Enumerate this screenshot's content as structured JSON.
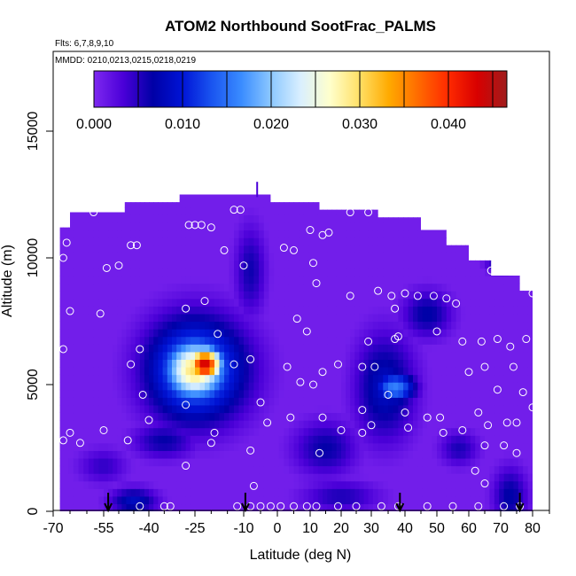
{
  "chart_data": {
    "type": "heatmap",
    "title": "ATOM2 Northbound SootFrac_PALMS",
    "subtitle_flights": "Flts: 6,7,8,9,10",
    "subtitle_dates": "MMDD: 0210,0213,0215,0218,0219",
    "xlabel": "Latitude (deg N)",
    "ylabel": "Altitude (m)",
    "xlim": [
      -70,
      85
    ],
    "ylim": [
      0,
      17500
    ],
    "x_ticks": [
      -70,
      -55,
      -40,
      -25,
      -10,
      0,
      10,
      20,
      30,
      40,
      50,
      60,
      70,
      80
    ],
    "x_tick_labels": [
      "-70",
      "-55",
      "-40",
      "-25",
      "-10",
      "0",
      "10",
      "20",
      "30",
      "40",
      "50",
      "60",
      "70",
      "80"
    ],
    "y_ticks": [
      0,
      5000,
      10000,
      15000
    ],
    "y_tick_labels": [
      "0",
      "5000",
      "10000",
      "15000"
    ],
    "colorbar": {
      "min": 0.0,
      "max": 0.0466,
      "tick_values": [
        0.0,
        0.01,
        0.02,
        0.03,
        0.04
      ],
      "tick_labels": [
        "0.000",
        "0.010",
        "0.020",
        "0.030",
        "0.040"
      ],
      "colors": [
        "#7e28f0",
        "#4a00d8",
        "#0000a6",
        "#0014d6",
        "#1a55f0",
        "#3a8cff",
        "#8cc8ff",
        "#d9efff",
        "#ffffcc",
        "#ffe066",
        "#ffaa00",
        "#ff6a00",
        "#ff2a00",
        "#d80000",
        "#a01c1c"
      ]
    },
    "grid": false,
    "legend": "none",
    "field_boundary": [
      [
        -68,
        0
      ],
      [
        -68,
        11200
      ],
      [
        -65,
        11200
      ],
      [
        -65,
        11800
      ],
      [
        -48,
        11800
      ],
      [
        -48,
        12200
      ],
      [
        -30,
        12200
      ],
      [
        -30,
        12500
      ],
      [
        -2,
        12500
      ],
      [
        -2,
        12200
      ],
      [
        13,
        12200
      ],
      [
        13,
        11900
      ],
      [
        32,
        11900
      ],
      [
        32,
        11600
      ],
      [
        45,
        11600
      ],
      [
        45,
        11100
      ],
      [
        53,
        11100
      ],
      [
        53,
        10500
      ],
      [
        60,
        10500
      ],
      [
        60,
        9900
      ],
      [
        67,
        9900
      ],
      [
        67,
        9300
      ],
      [
        76,
        9300
      ],
      [
        76,
        8700
      ],
      [
        80,
        8700
      ],
      [
        80,
        0
      ]
    ],
    "field_features": [
      {
        "lat": -22,
        "alt": 5800,
        "value": 0.044,
        "lat_halfwidth": 7,
        "alt_halfwidth": 900
      },
      {
        "lat": -25,
        "alt": 5600,
        "value": 0.03,
        "lat_halfwidth": 13,
        "alt_halfwidth": 1600
      },
      {
        "lat": -25,
        "alt": 5600,
        "value": 0.017,
        "lat_halfwidth": 20,
        "alt_halfwidth": 2600
      },
      {
        "lat": 37,
        "alt": 4900,
        "value": 0.016,
        "lat_halfwidth": 8,
        "alt_halfwidth": 800
      },
      {
        "lat": 34,
        "alt": 4900,
        "value": 0.0085,
        "lat_halfwidth": 12,
        "alt_halfwidth": 2700
      },
      {
        "lat": 47,
        "alt": 7800,
        "value": 0.007,
        "lat_halfwidth": 10,
        "alt_halfwidth": 1200
      },
      {
        "lat": -8,
        "alt": 9500,
        "value": 0.006,
        "lat_halfwidth": 6,
        "alt_halfwidth": 2300
      },
      {
        "lat": -45,
        "alt": 400,
        "value": 0.0085,
        "lat_halfwidth": 10,
        "alt_halfwidth": 700
      },
      {
        "lat": 73,
        "alt": 600,
        "value": 0.007,
        "lat_halfwidth": 7,
        "alt_halfwidth": 1500
      },
      {
        "lat": 15,
        "alt": 2500,
        "value": 0.0065,
        "lat_halfwidth": 13,
        "alt_halfwidth": 1400
      },
      {
        "lat": -35,
        "alt": 2800,
        "value": 0.0065,
        "lat_halfwidth": 13,
        "alt_halfwidth": 900
      },
      {
        "lat": 20,
        "alt": 600,
        "value": 0.0055,
        "lat_halfwidth": 16,
        "alt_halfwidth": 800
      },
      {
        "lat": 70,
        "alt": 9800,
        "value": 0.0065,
        "lat_halfwidth": 6,
        "alt_halfwidth": 500
      },
      {
        "lat": 57,
        "alt": 2500,
        "value": 0.0055,
        "lat_halfwidth": 8,
        "alt_halfwidth": 900
      },
      {
        "lat": -55,
        "alt": 1800,
        "value": 0.0045,
        "lat_halfwidth": 10,
        "alt_halfwidth": 900
      }
    ],
    "sample_points": [
      [
        -68,
        11800
      ],
      [
        -66,
        10600
      ],
      [
        -67,
        10000
      ],
      [
        -65,
        7900
      ],
      [
        -67,
        6400
      ],
      [
        -67,
        2800
      ],
      [
        -65,
        3100
      ],
      [
        -62,
        2700
      ],
      [
        -58,
        11800
      ],
      [
        -56,
        7800
      ],
      [
        -55,
        3200
      ],
      [
        -54,
        9600
      ],
      [
        -50,
        9700
      ],
      [
        -46,
        10500
      ],
      [
        -44,
        10500
      ],
      [
        -43,
        6400
      ],
      [
        -46,
        5800
      ],
      [
        -42,
        4600
      ],
      [
        -40,
        3600
      ],
      [
        -47,
        2800
      ],
      [
        -43,
        200
      ],
      [
        -35,
        200
      ],
      [
        -33,
        200
      ],
      [
        -27,
        11300
      ],
      [
        -25,
        11300
      ],
      [
        -23,
        11300
      ],
      [
        -20,
        11200
      ],
      [
        -13,
        11900
      ],
      [
        -11,
        11900
      ],
      [
        -28,
        8000
      ],
      [
        -22,
        8300
      ],
      [
        -28,
        4200
      ],
      [
        -28,
        1800
      ],
      [
        -20,
        2700
      ],
      [
        -19,
        3100
      ],
      [
        -18,
        7000
      ],
      [
        -16,
        10300
      ],
      [
        -10,
        9700
      ],
      [
        -13,
        5800
      ],
      [
        -8,
        6000
      ],
      [
        -5,
        4300
      ],
      [
        -3,
        3500
      ],
      [
        -8,
        2400
      ],
      [
        -12,
        200
      ],
      [
        -8,
        200
      ],
      [
        -7,
        1000
      ],
      [
        -5,
        200
      ],
      [
        -2,
        200
      ],
      [
        1,
        200
      ],
      [
        5,
        200
      ],
      [
        9,
        200
      ],
      [
        12,
        200
      ],
      [
        19,
        200
      ],
      [
        25,
        200
      ],
      [
        33,
        200
      ],
      [
        38,
        200
      ],
      [
        47,
        200
      ],
      [
        55,
        200
      ],
      [
        63,
        200
      ],
      [
        71,
        200
      ],
      [
        76,
        200
      ],
      [
        2,
        10400
      ],
      [
        5,
        10300
      ],
      [
        10,
        11100
      ],
      [
        14,
        10900
      ],
      [
        16,
        11000
      ],
      [
        11,
        9800
      ],
      [
        12,
        9000
      ],
      [
        6,
        7600
      ],
      [
        9,
        7100
      ],
      [
        3,
        5700
      ],
      [
        7,
        5100
      ],
      [
        11,
        5000
      ],
      [
        14,
        5500
      ],
      [
        4,
        3700
      ],
      [
        14,
        3700
      ],
      [
        20,
        3200
      ],
      [
        27,
        3100
      ],
      [
        13,
        2300
      ],
      [
        19,
        5800
      ],
      [
        23,
        11800
      ],
      [
        29,
        11800
      ],
      [
        23,
        8500
      ],
      [
        32,
        8700
      ],
      [
        36,
        8500
      ],
      [
        40,
        8600
      ],
      [
        37,
        8000
      ],
      [
        29,
        6700
      ],
      [
        38,
        6900
      ],
      [
        37,
        6800
      ],
      [
        31,
        5700
      ],
      [
        27,
        5700
      ],
      [
        35,
        4600
      ],
      [
        40,
        3900
      ],
      [
        41,
        3300
      ],
      [
        47,
        3700
      ],
      [
        51,
        3700
      ],
      [
        27,
        4000
      ],
      [
        30,
        3400
      ],
      [
        44,
        8500
      ],
      [
        49,
        8500
      ],
      [
        50,
        7100
      ],
      [
        53,
        8400
      ],
      [
        56,
        8200
      ],
      [
        58,
        6700
      ],
      [
        64,
        6700
      ],
      [
        69,
        6800
      ],
      [
        67,
        9500
      ],
      [
        70,
        9800
      ],
      [
        73,
        6500
      ],
      [
        78,
        6800
      ],
      [
        60,
        5500
      ],
      [
        65,
        5700
      ],
      [
        74,
        5700
      ],
      [
        69,
        4800
      ],
      [
        77,
        4700
      ],
      [
        80,
        4100
      ],
      [
        75,
        3500
      ],
      [
        66,
        3400
      ],
      [
        52,
        3100
      ],
      [
        58,
        3200
      ],
      [
        63,
        3900
      ],
      [
        72,
        3500
      ],
      [
        65,
        2600
      ],
      [
        71,
        2600
      ],
      [
        62,
        1600
      ],
      [
        75,
        2300
      ],
      [
        65,
        1100
      ],
      [
        80,
        8600
      ]
    ],
    "flight_markers": [
      -53.5,
      -9.5,
      38.5,
      76
    ],
    "top_tick_lat": -6
  }
}
